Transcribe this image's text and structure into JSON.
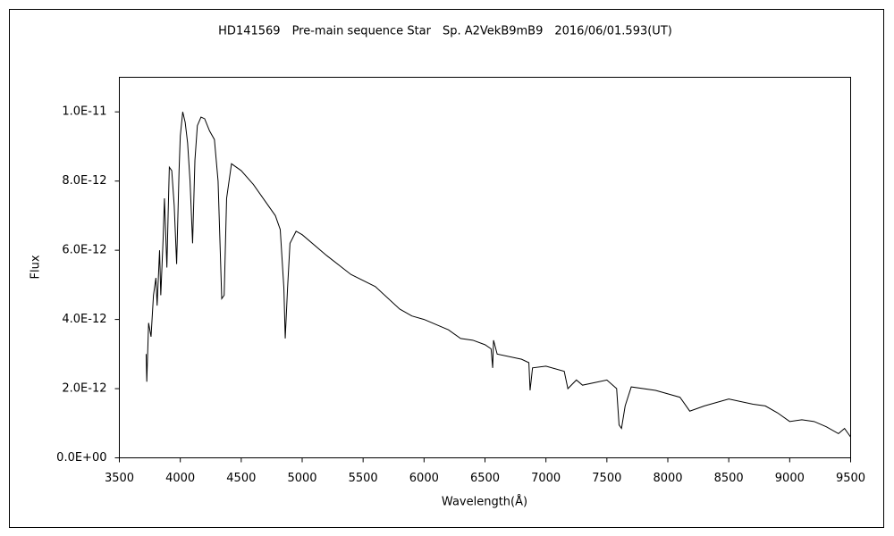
{
  "chart_data": {
    "type": "line",
    "title": "HD141569　Pre-main sequence Star　Sp. A2VekB9mB9　2016/06/01.593(UT)",
    "x_label": "Wavelength(Å)",
    "y_label": "Flux",
    "xlim": [
      3500,
      9500
    ],
    "xticks": [
      3500,
      4000,
      4500,
      5000,
      5500,
      6000,
      6500,
      7000,
      7500,
      8000,
      8500,
      9000,
      9500
    ],
    "ylim": [
      0,
      1.1e-11
    ],
    "yticks": [
      {
        "value": 0,
        "label": "0.0E+00"
      },
      {
        "value": 2e-12,
        "label": "2.0E-12"
      },
      {
        "value": 4e-12,
        "label": "4.0E-12"
      },
      {
        "value": 6e-12,
        "label": "6.0E-12"
      },
      {
        "value": 8e-12,
        "label": "8.0E-12"
      },
      {
        "value": 1e-11,
        "label": "1.0E-11"
      }
    ],
    "grid": false,
    "series": [
      {
        "color": "#000000",
        "x": [
          3720,
          3725,
          3740,
          3760,
          3780,
          3800,
          3810,
          3830,
          3840,
          3860,
          3870,
          3880,
          3890,
          3900,
          3910,
          3930,
          3950,
          3970,
          3990,
          4000,
          4020,
          4040,
          4060,
          4080,
          4101,
          4120,
          4140,
          4170,
          4200,
          4240,
          4280,
          4310,
          4340,
          4360,
          4380,
          4420,
          4500,
          4600,
          4700,
          4780,
          4820,
          4850,
          4861,
          4880,
          4900,
          4950,
          5000,
          5200,
          5400,
          5600,
          5800,
          5900,
          6000,
          6200,
          6300,
          6400,
          6500,
          6550,
          6563,
          6570,
          6600,
          6800,
          6860,
          6870,
          6890,
          7000,
          7150,
          7180,
          7250,
          7300,
          7500,
          7580,
          7600,
          7620,
          7650,
          7700,
          7900,
          8100,
          8180,
          8300,
          8500,
          8700,
          8800,
          8900,
          9000,
          9100,
          9200,
          9300,
          9400,
          9450,
          9500
        ],
        "values": [
          3e-12,
          2.2e-12,
          3.9e-12,
          3.5e-12,
          4.7e-12,
          5.2e-12,
          4.4e-12,
          6e-12,
          4.7e-12,
          6.4e-12,
          7.5e-12,
          6.5e-12,
          5.5e-12,
          7e-12,
          8.4e-12,
          8.3e-12,
          7.3e-12,
          5.6e-12,
          8.3e-12,
          9.3e-12,
          1e-11,
          9.7e-12,
          9.1e-12,
          8e-12,
          6.2e-12,
          8.6e-12,
          9.6e-12,
          9.85e-12,
          9.8e-12,
          9.45e-12,
          9.2e-12,
          8e-12,
          4.6e-12,
          4.7e-12,
          7.5e-12,
          8.5e-12,
          8.3e-12,
          7.9e-12,
          7.4e-12,
          7e-12,
          6.6e-12,
          4.9e-12,
          3.45e-12,
          4.9e-12,
          6.2e-12,
          6.55e-12,
          6.45e-12,
          5.85e-12,
          5.3e-12,
          4.95e-12,
          4.3e-12,
          4.1e-12,
          4e-12,
          3.7e-12,
          3.45e-12,
          3.4e-12,
          3.27e-12,
          3.15e-12,
          2.6e-12,
          3.4e-12,
          3e-12,
          2.85e-12,
          2.75e-12,
          1.95e-12,
          2.6e-12,
          2.65e-12,
          2.5e-12,
          2e-12,
          2.25e-12,
          2.1e-12,
          2.25e-12,
          2e-12,
          9.5e-13,
          8.5e-13,
          1.5e-12,
          2.05e-12,
          1.95e-12,
          1.75e-12,
          1.35e-12,
          1.5e-12,
          1.7e-12,
          1.55e-12,
          1.5e-12,
          1.3e-12,
          1.05e-12,
          1.1e-12,
          1.05e-12,
          9e-13,
          7e-13,
          8.5e-13,
          6e-13
        ]
      }
    ]
  }
}
